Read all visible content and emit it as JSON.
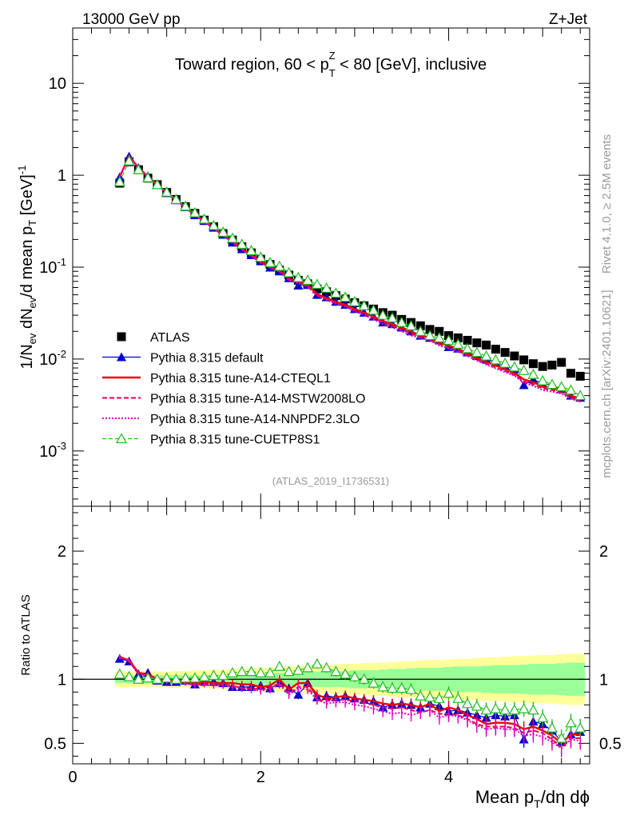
{
  "header": {
    "left": "13000 GeV pp",
    "right": "Z+Jet",
    "side_version": "Rivet 4.1.0, ≥ 2.5M events",
    "side_source": "mcplots.cern.ch [arXiv:2401.10621]",
    "analysis": "(ATLAS_2019_I1736531)"
  },
  "chart_data": [
    {
      "type": "scatter",
      "title": "Toward region, 60 < p_T^Z < 80 [GeV], inclusive",
      "xlabel": "Mean p_T/dη dφ",
      "ylabel": "1/N_ev dN_ev/d mean p_T [GeV]^-1",
      "yscale": "log",
      "xlim": [
        0,
        5.5
      ],
      "ylim": [
        0.00025,
        40
      ],
      "ytick_labels": [
        "10^-3",
        "10^-2",
        "10^-1",
        "1",
        "10"
      ],
      "xtick_labels": [
        "0",
        "2",
        "4"
      ],
      "legend_position": "lower-left",
      "x": [
        0.5,
        0.6,
        0.7,
        0.8,
        0.9,
        1.0,
        1.1,
        1.2,
        1.3,
        1.4,
        1.5,
        1.6,
        1.7,
        1.8,
        1.9,
        2.0,
        2.1,
        2.2,
        2.3,
        2.4,
        2.5,
        2.6,
        2.7,
        2.8,
        2.9,
        3.0,
        3.1,
        3.2,
        3.3,
        3.4,
        3.5,
        3.6,
        3.7,
        3.8,
        3.9,
        4.0,
        4.1,
        4.2,
        4.3,
        4.4,
        4.5,
        4.6,
        4.7,
        4.8,
        4.9,
        5.0,
        5.1,
        5.2,
        5.3,
        5.4
      ],
      "series": [
        {
          "name": "ATLAS",
          "values": [
            0.82,
            1.4,
            1.15,
            0.93,
            0.79,
            0.65,
            0.545,
            0.455,
            0.385,
            0.325,
            0.275,
            0.232,
            0.197,
            0.167,
            0.143,
            0.122,
            0.107,
            0.093,
            0.082,
            0.072,
            0.066,
            0.058,
            0.054,
            0.049,
            0.045,
            0.041,
            0.038,
            0.035,
            0.032,
            0.03,
            0.027,
            0.025,
            0.023,
            0.021,
            0.02,
            0.018,
            0.017,
            0.016,
            0.015,
            0.0142,
            0.0128,
            0.0118,
            0.0108,
            0.0098,
            0.0089,
            0.0083,
            0.0086,
            0.0092,
            0.007,
            0.0065
          ]
        },
        {
          "name": "Pythia 8.315 default",
          "values": [
            0.95,
            1.6,
            1.2,
            0.98,
            0.78,
            0.64,
            0.535,
            0.45,
            0.368,
            0.318,
            0.269,
            0.225,
            0.185,
            0.157,
            0.135,
            0.116,
            0.099,
            0.09,
            0.076,
            0.063,
            0.064,
            0.05,
            0.047,
            0.042,
            0.039,
            0.035,
            0.032,
            0.029,
            0.025,
            0.024,
            0.022,
            0.02,
            0.018,
            0.017,
            0.016,
            0.0135,
            0.013,
            0.0118,
            0.0108,
            0.01,
            0.0092,
            0.0084,
            0.0078,
            0.0052,
            0.006,
            0.0054,
            0.0052,
            0.0047,
            0.004,
            0.0038
          ]
        },
        {
          "name": "Pythia 8.315 tune-A14-CTEQL1",
          "values": [
            0.96,
            1.62,
            1.21,
            0.97,
            0.79,
            0.65,
            0.54,
            0.448,
            0.372,
            0.318,
            0.267,
            0.226,
            0.191,
            0.16,
            0.137,
            0.115,
            0.102,
            0.093,
            0.075,
            0.07,
            0.064,
            0.051,
            0.046,
            0.042,
            0.039,
            0.035,
            0.032,
            0.029,
            0.026,
            0.024,
            0.022,
            0.02,
            0.018,
            0.017,
            0.015,
            0.014,
            0.013,
            0.0115,
            0.0103,
            0.0093,
            0.0085,
            0.0078,
            0.007,
            0.006,
            0.0056,
            0.005,
            0.0048,
            0.0046,
            0.004,
            0.0037
          ]
        },
        {
          "name": "Pythia 8.315 tune-A14-MSTW2008LO",
          "values": [
            0.97,
            1.6,
            1.2,
            0.96,
            0.78,
            0.64,
            0.535,
            0.443,
            0.368,
            0.313,
            0.263,
            0.222,
            0.187,
            0.156,
            0.133,
            0.112,
            0.099,
            0.09,
            0.073,
            0.068,
            0.062,
            0.049,
            0.045,
            0.041,
            0.038,
            0.034,
            0.031,
            0.028,
            0.025,
            0.023,
            0.021,
            0.019,
            0.017,
            0.016,
            0.0145,
            0.0132,
            0.0123,
            0.011,
            0.0098,
            0.0089,
            0.0081,
            0.0074,
            0.0067,
            0.0057,
            0.0053,
            0.0048,
            0.0046,
            0.0043,
            0.0038,
            0.0035
          ]
        },
        {
          "name": "Pythia 8.315 tune-A14-NNPDF2.3LO",
          "values": [
            0.96,
            1.61,
            1.2,
            0.96,
            0.78,
            0.64,
            0.532,
            0.44,
            0.365,
            0.311,
            0.262,
            0.22,
            0.185,
            0.155,
            0.132,
            0.111,
            0.098,
            0.089,
            0.072,
            0.067,
            0.061,
            0.049,
            0.044,
            0.04,
            0.037,
            0.033,
            0.03,
            0.027,
            0.024,
            0.022,
            0.02,
            0.018,
            0.017,
            0.016,
            0.014,
            0.013,
            0.012,
            0.0108,
            0.0096,
            0.0087,
            0.0079,
            0.0072,
            0.0066,
            0.0055,
            0.0051,
            0.0046,
            0.0044,
            0.0042,
            0.0037,
            0.0034
          ]
        },
        {
          "name": "Pythia 8.315 tune-CUETP8S1",
          "values": [
            0.85,
            1.43,
            1.15,
            0.94,
            0.79,
            0.655,
            0.545,
            0.46,
            0.39,
            0.333,
            0.283,
            0.24,
            0.206,
            0.177,
            0.151,
            0.128,
            0.112,
            0.102,
            0.087,
            0.077,
            0.072,
            0.065,
            0.059,
            0.052,
            0.047,
            0.042,
            0.038,
            0.034,
            0.03,
            0.028,
            0.025,
            0.023,
            0.02,
            0.018,
            0.017,
            0.016,
            0.0145,
            0.013,
            0.0118,
            0.0108,
            0.0098,
            0.009,
            0.0082,
            0.0075,
            0.0068,
            0.0058,
            0.0053,
            0.005,
            0.0046,
            0.004
          ]
        }
      ]
    },
    {
      "type": "line",
      "title": "",
      "xlabel": "Mean p_T/dη dφ",
      "ylabel": "Ratio to ATLAS",
      "xlim": [
        0,
        5.5
      ],
      "ylim": [
        0.34,
        2.35
      ],
      "ytick_labels": [
        "0.5",
        "1",
        "2"
      ],
      "xtick_labels": [
        "0",
        "2",
        "4"
      ],
      "reference_line": 1,
      "band_inner_halfwidth": [
        0.03,
        0.03,
        0.03,
        0.03,
        0.03,
        0.03,
        0.03,
        0.03,
        0.03,
        0.03,
        0.03,
        0.03,
        0.035,
        0.035,
        0.04,
        0.04,
        0.045,
        0.05,
        0.05,
        0.05,
        0.055,
        0.06,
        0.06,
        0.06,
        0.065,
        0.07,
        0.07,
        0.07,
        0.075,
        0.08,
        0.08,
        0.085,
        0.09,
        0.09,
        0.09,
        0.095,
        0.1,
        0.1,
        0.1,
        0.105,
        0.11,
        0.11,
        0.11,
        0.115,
        0.12,
        0.12,
        0.12,
        0.125,
        0.13,
        0.13
      ],
      "band_outer_halfwidth": [
        0.06,
        0.06,
        0.06,
        0.06,
        0.06,
        0.06,
        0.065,
        0.065,
        0.07,
        0.07,
        0.075,
        0.075,
        0.08,
        0.08,
        0.085,
        0.09,
        0.09,
        0.095,
        0.1,
        0.1,
        0.105,
        0.11,
        0.11,
        0.115,
        0.12,
        0.12,
        0.125,
        0.13,
        0.13,
        0.135,
        0.14,
        0.14,
        0.145,
        0.15,
        0.15,
        0.155,
        0.16,
        0.16,
        0.165,
        0.17,
        0.17,
        0.175,
        0.18,
        0.18,
        0.185,
        0.19,
        0.19,
        0.195,
        0.2,
        0.2
      ],
      "series": [
        {
          "name": "Pythia 8.315 default",
          "values": [
            1.16,
            1.14,
            1.04,
            1.05,
            0.99,
            0.98,
            0.98,
            0.99,
            0.96,
            0.98,
            0.98,
            0.97,
            0.94,
            0.94,
            0.94,
            0.95,
            0.93,
            0.97,
            0.93,
            0.88,
            0.97,
            0.86,
            0.87,
            0.86,
            0.87,
            0.85,
            0.84,
            0.83,
            0.78,
            0.8,
            0.81,
            0.8,
            0.78,
            0.81,
            0.79,
            0.75,
            0.76,
            0.74,
            0.72,
            0.7,
            0.72,
            0.71,
            0.72,
            0.53,
            0.67,
            0.65,
            0.6,
            0.51,
            0.57,
            0.59
          ]
        },
        {
          "name": "Pythia 8.315 tune-A14-CTEQL1",
          "values": [
            1.17,
            1.15,
            1.05,
            1.04,
            1.0,
            1.0,
            0.99,
            0.98,
            0.97,
            0.98,
            0.97,
            0.97,
            0.97,
            0.96,
            0.96,
            0.94,
            0.95,
            1.0,
            0.92,
            0.97,
            0.97,
            0.88,
            0.85,
            0.86,
            0.87,
            0.85,
            0.84,
            0.83,
            0.81,
            0.8,
            0.81,
            0.8,
            0.78,
            0.81,
            0.75,
            0.78,
            0.76,
            0.72,
            0.69,
            0.65,
            0.66,
            0.66,
            0.65,
            0.61,
            0.63,
            0.6,
            0.56,
            0.5,
            0.57,
            0.57
          ]
        },
        {
          "name": "Pythia 8.315 tune-A14-MSTW2008LO",
          "values": [
            1.18,
            1.14,
            1.04,
            1.03,
            0.99,
            0.98,
            0.98,
            0.97,
            0.96,
            0.96,
            0.96,
            0.96,
            0.95,
            0.93,
            0.93,
            0.92,
            0.93,
            0.97,
            0.89,
            0.94,
            0.94,
            0.84,
            0.83,
            0.84,
            0.84,
            0.83,
            0.82,
            0.8,
            0.78,
            0.77,
            0.78,
            0.76,
            0.74,
            0.76,
            0.73,
            0.73,
            0.72,
            0.69,
            0.65,
            0.63,
            0.63,
            0.63,
            0.62,
            0.58,
            0.6,
            0.58,
            0.53,
            0.47,
            0.54,
            0.54
          ]
        },
        {
          "name": "Pythia 8.315 tune-A14-NNPDF2.3LO",
          "values": [
            1.17,
            1.15,
            1.04,
            1.03,
            0.99,
            0.98,
            0.98,
            0.97,
            0.95,
            0.96,
            0.95,
            0.95,
            0.94,
            0.93,
            0.92,
            0.91,
            0.92,
            0.96,
            0.88,
            0.93,
            0.92,
            0.84,
            0.81,
            0.82,
            0.82,
            0.8,
            0.79,
            0.77,
            0.75,
            0.73,
            0.74,
            0.72,
            0.74,
            0.76,
            0.7,
            0.72,
            0.71,
            0.68,
            0.64,
            0.61,
            0.62,
            0.61,
            0.61,
            0.56,
            0.57,
            0.55,
            0.51,
            0.46,
            0.53,
            0.52
          ]
        },
        {
          "name": "Pythia 8.315 tune-CUETP8S1",
          "values": [
            1.04,
            1.02,
            1.0,
            1.01,
            1.0,
            1.01,
            1.0,
            1.01,
            1.01,
            1.02,
            1.03,
            1.03,
            1.05,
            1.06,
            1.06,
            1.05,
            1.05,
            1.1,
            1.06,
            1.07,
            1.09,
            1.12,
            1.09,
            1.06,
            1.04,
            1.02,
            1.0,
            0.97,
            0.94,
            0.93,
            0.93,
            0.92,
            0.87,
            0.86,
            0.85,
            0.89,
            0.85,
            0.81,
            0.79,
            0.76,
            0.77,
            0.76,
            0.76,
            0.77,
            0.76,
            0.7,
            0.62,
            0.54,
            0.66,
            0.62
          ]
        }
      ]
    }
  ]
}
